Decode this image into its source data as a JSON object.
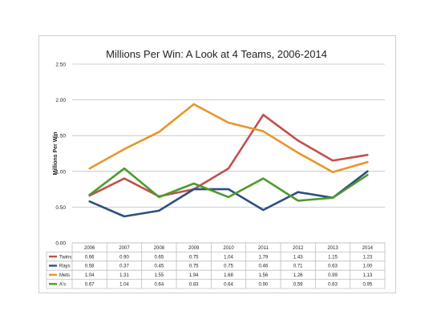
{
  "chart_data": {
    "type": "line",
    "title": "Millions Per Win: A Look at 4 Teams, 2006-2014",
    "xlabel": "",
    "ylabel": "Millions Per Win",
    "ylim": [
      0,
      2.5
    ],
    "yticks": [
      "0.00",
      "0.50",
      "1.00",
      "1.50",
      "2.00",
      "2.50"
    ],
    "categories": [
      "2006",
      "2007",
      "2008",
      "2009",
      "2010",
      "2011",
      "2012",
      "2013",
      "2014"
    ],
    "grid": "horizontal",
    "legend": "data table",
    "series": [
      {
        "name": "Twins",
        "color": "#c0504d",
        "values": [
          0.66,
          0.9,
          0.65,
          0.75,
          1.04,
          1.79,
          1.43,
          1.15,
          1.23
        ],
        "labels": [
          "0.66",
          "0.90",
          "0.65",
          "0.75",
          "1.04",
          "1.79",
          "1.43",
          "1.15",
          "1.23"
        ]
      },
      {
        "name": "Rays",
        "color": "#2f4f7f",
        "values": [
          0.58,
          0.37,
          0.45,
          0.75,
          0.75,
          0.46,
          0.71,
          0.63,
          1.0
        ],
        "labels": [
          "0.58",
          "0.37",
          "0.45",
          "0.75",
          "0.75",
          "0.46",
          "0.71",
          "0.63",
          "1.00"
        ]
      },
      {
        "name": "Mets",
        "color": "#e8952b",
        "values": [
          1.04,
          1.31,
          1.55,
          1.94,
          1.68,
          1.56,
          1.26,
          0.99,
          1.13
        ],
        "labels": [
          "1.04",
          "1.31",
          "1.55",
          "1.94",
          "1.68",
          "1.56",
          "1.26",
          "0.99",
          "1.13"
        ]
      },
      {
        "name": "A's",
        "color": "#4e9a2a",
        "values": [
          0.67,
          1.04,
          0.64,
          0.83,
          0.64,
          0.9,
          0.59,
          0.63,
          0.95
        ],
        "labels": [
          "0.67",
          "1.04",
          "0.64",
          "0.83",
          "0.64",
          "0.90",
          "0.59",
          "0.63",
          "0.95"
        ]
      }
    ]
  }
}
